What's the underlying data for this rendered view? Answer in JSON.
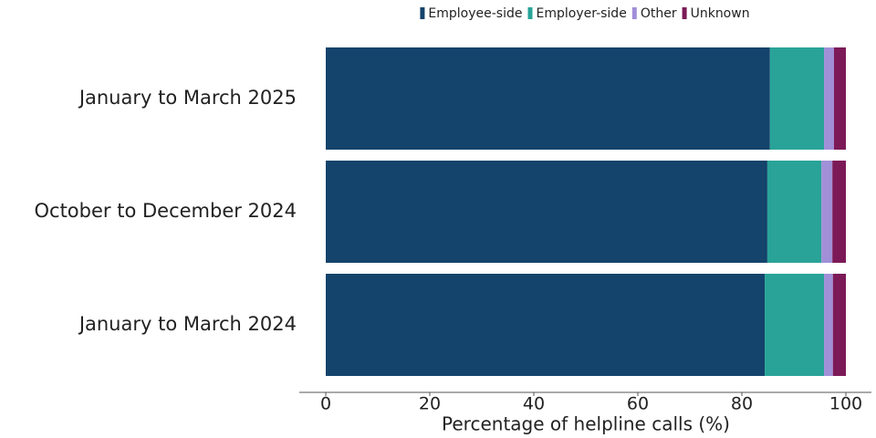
{
  "chart_data": {
    "type": "stacked-barh",
    "x_label": "Percentage of helpline calls (%)",
    "categories": [
      "January to March 2025",
      "October to December 2024",
      "January to March 2024"
    ],
    "series": [
      {
        "name": "Employee-side",
        "color": "#14436b",
        "values": [
          85.4,
          84.9,
          84.4
        ]
      },
      {
        "name": "Employer-side",
        "color": "#29a398",
        "values": [
          10.4,
          10.4,
          11.4
        ]
      },
      {
        "name": "Other",
        "color": "#a18fd8",
        "values": [
          1.9,
          2.1,
          1.7
        ]
      },
      {
        "name": "Unknown",
        "color": "#7c1a57",
        "values": [
          2.3,
          2.6,
          2.5
        ]
      }
    ],
    "xlim": [
      0,
      100
    ],
    "xticks": [
      0,
      20,
      40,
      60,
      80,
      100
    ],
    "legend": "top"
  }
}
